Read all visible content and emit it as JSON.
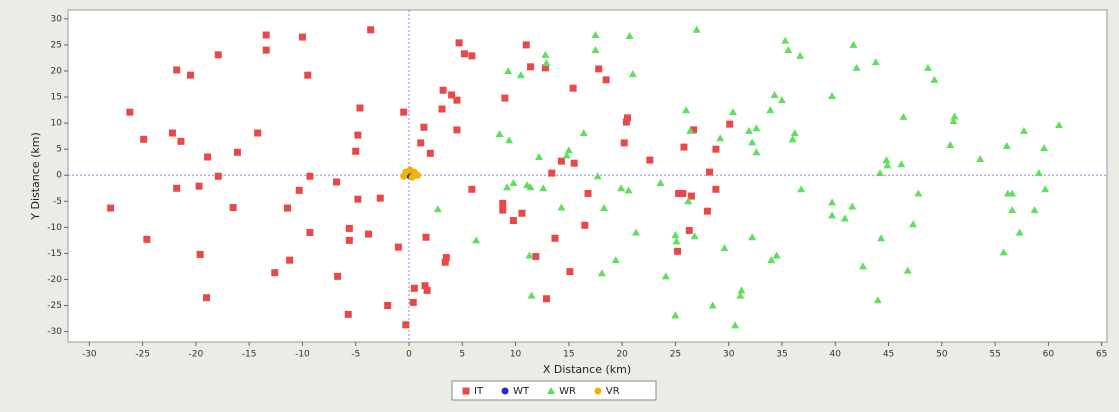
{
  "chart_data": {
    "type": "scatter",
    "x_label": "X Distance (km)",
    "y_label": "Y Distance (km)",
    "xlim": [
      -32,
      65.5
    ],
    "ylim": [
      -32,
      31.7
    ],
    "xticks": [
      -30,
      -25,
      -20,
      -15,
      -10,
      -5,
      0,
      5,
      10,
      15,
      20,
      25,
      30,
      35,
      40,
      45,
      50,
      55,
      60,
      65
    ],
    "yticks": [
      -30,
      -25,
      -20,
      -15,
      -10,
      -5,
      0,
      5,
      10,
      15,
      20,
      25,
      30
    ],
    "grid": false,
    "zero_lines": true,
    "legend": "bottom",
    "series": [
      {
        "name": "IT",
        "color": "#e84848",
        "marker": "square",
        "x": [
          -28.0,
          -26.2,
          -24.9,
          -24.6,
          -22.2,
          -21.8,
          -21.4,
          -21.8,
          -20.5,
          -19.7,
          -19.6,
          -19.0,
          -18.9,
          -17.9,
          -17.9,
          -16.5,
          -16.1,
          -14.2,
          -13.4,
          -13.4,
          -12.6,
          -11.4,
          -11.2,
          -10.3,
          -10.0,
          -9.5,
          -9.3,
          -9.3,
          -6.8,
          -6.7,
          -5.7,
          -5.6,
          -5.6,
          -5.0,
          -4.8,
          -4.6,
          -4.8,
          -3.8,
          -3.6,
          -2.7,
          -2.0,
          -1.0,
          -0.5,
          -0.3,
          0.4,
          0.5,
          1.1,
          1.4,
          1.5,
          1.7,
          1.6,
          2.0,
          3.1,
          3.2,
          3.4,
          3.5,
          4.0,
          4.5,
          4.5,
          4.7,
          5.2,
          5.9,
          5.9,
          8.8,
          8.8,
          9.0,
          9.8,
          10.6,
          11.0,
          11.4,
          11.9,
          12.8,
          12.9,
          13.4,
          13.7,
          14.3,
          15.1,
          15.4,
          15.5,
          16.5,
          16.8,
          17.8,
          18.5,
          20.2,
          20.4,
          20.5,
          22.6,
          25.2,
          25.3,
          25.7,
          25.8,
          26.3,
          26.5,
          26.7,
          28.0,
          28.2,
          28.8,
          28.8,
          30.1
        ],
        "y": [
          -6.3,
          12.1,
          6.9,
          -12.3,
          8.1,
          20.2,
          6.5,
          -2.5,
          19.2,
          -2.1,
          -15.2,
          -23.5,
          3.5,
          -0.2,
          23.1,
          -6.2,
          4.4,
          8.1,
          26.9,
          24.0,
          -18.7,
          -6.3,
          -16.3,
          -2.9,
          26.5,
          19.2,
          -0.2,
          -11.0,
          -1.3,
          -19.4,
          -26.7,
          -12.5,
          -10.2,
          4.6,
          7.7,
          12.9,
          -4.6,
          -11.3,
          27.9,
          -4.4,
          -25.0,
          -13.8,
          12.1,
          -28.7,
          -24.4,
          -21.7,
          6.2,
          9.2,
          -21.2,
          -22.1,
          -11.9,
          4.2,
          12.7,
          16.3,
          -16.7,
          -15.8,
          15.4,
          14.4,
          8.7,
          25.4,
          23.3,
          22.9,
          -2.7,
          -5.4,
          -6.7,
          14.8,
          -8.7,
          -7.3,
          25.0,
          20.8,
          -15.6,
          20.6,
          -23.7,
          0.4,
          -12.1,
          2.7,
          -18.5,
          16.7,
          2.3,
          -9.6,
          -3.5,
          20.4,
          18.3,
          6.2,
          10.2,
          11.0,
          2.9,
          -14.6,
          -3.5,
          -3.5,
          5.4,
          -10.6,
          -4.0,
          8.7,
          -6.9,
          0.6,
          5.0,
          -2.7,
          9.8
        ]
      },
      {
        "name": "WT",
        "color": "#2828e0",
        "marker": "circle",
        "x": [
          0
        ],
        "y": [
          0
        ]
      },
      {
        "name": "WR",
        "color": "#5ee05e",
        "marker": "triangle",
        "x": [
          2.7,
          6.3,
          8.5,
          9.2,
          9.3,
          9.4,
          9.8,
          10.5,
          11.1,
          11.3,
          11.4,
          11.5,
          12.2,
          12.6,
          12.8,
          12.9,
          14.3,
          14.8,
          15.0,
          16.4,
          17.5,
          17.5,
          17.7,
          18.1,
          18.3,
          19.4,
          19.9,
          20.6,
          20.7,
          21.0,
          21.3,
          23.6,
          24.1,
          25.0,
          25.0,
          25.1,
          26.0,
          26.2,
          26.4,
          26.8,
          27.0,
          28.5,
          29.2,
          29.6,
          30.4,
          30.6,
          31.1,
          31.2,
          31.9,
          32.2,
          32.2,
          32.6,
          32.6,
          33.9,
          34.0,
          34.3,
          34.5,
          35.0,
          35.3,
          35.6,
          36.0,
          36.2,
          36.7,
          36.8,
          39.7,
          39.7,
          39.7,
          40.9,
          41.6,
          41.7,
          42.0,
          42.6,
          43.8,
          44.0,
          44.2,
          44.3,
          44.8,
          44.9,
          46.2,
          46.4,
          46.8,
          47.3,
          47.8,
          48.7,
          49.3,
          50.8,
          51.1,
          51.2,
          53.6,
          55.8,
          56.1,
          56.2,
          56.6,
          56.6,
          57.3,
          57.7,
          58.7,
          59.1,
          59.6,
          59.7,
          61.0
        ],
        "y": [
          -6.5,
          -12.5,
          7.9,
          -2.3,
          20.0,
          6.7,
          -1.5,
          19.2,
          -1.9,
          -15.4,
          -2.3,
          -23.1,
          3.5,
          -2.5,
          23.1,
          21.5,
          -6.2,
          3.8,
          4.8,
          8.1,
          26.9,
          24.0,
          -0.2,
          -18.8,
          -6.3,
          -16.3,
          -2.5,
          -2.9,
          26.7,
          19.4,
          -11.0,
          -1.5,
          -19.4,
          -11.5,
          -26.9,
          -12.7,
          12.5,
          -5.0,
          8.5,
          -11.7,
          27.9,
          -25.0,
          7.1,
          -14.0,
          12.1,
          -28.8,
          -23.1,
          -22.1,
          8.5,
          6.3,
          -11.9,
          4.4,
          9.0,
          12.5,
          -16.3,
          15.4,
          -15.4,
          14.4,
          25.8,
          24.0,
          6.9,
          8.1,
          22.9,
          -2.7,
          15.2,
          -5.2,
          -7.7,
          -8.3,
          -6.0,
          25.0,
          20.6,
          -17.5,
          21.7,
          -24.0,
          0.4,
          -12.1,
          2.9,
          1.9,
          2.1,
          11.2,
          -18.3,
          -9.4,
          -3.5,
          20.6,
          18.3,
          5.8,
          10.4,
          11.3,
          3.1,
          -14.8,
          5.6,
          -3.5,
          -3.5,
          -6.7,
          -11.0,
          8.5,
          -6.7,
          0.4,
          5.2,
          -2.7,
          9.6
        ]
      },
      {
        "name": "VR",
        "color": "#f0b400",
        "marker": "circle",
        "x": [
          -0.3,
          0.1,
          0.5,
          0.8,
          0.3,
          -0.5
        ],
        "y": [
          0.6,
          1.0,
          0.6,
          0.0,
          -0.4,
          -0.2
        ]
      }
    ]
  }
}
